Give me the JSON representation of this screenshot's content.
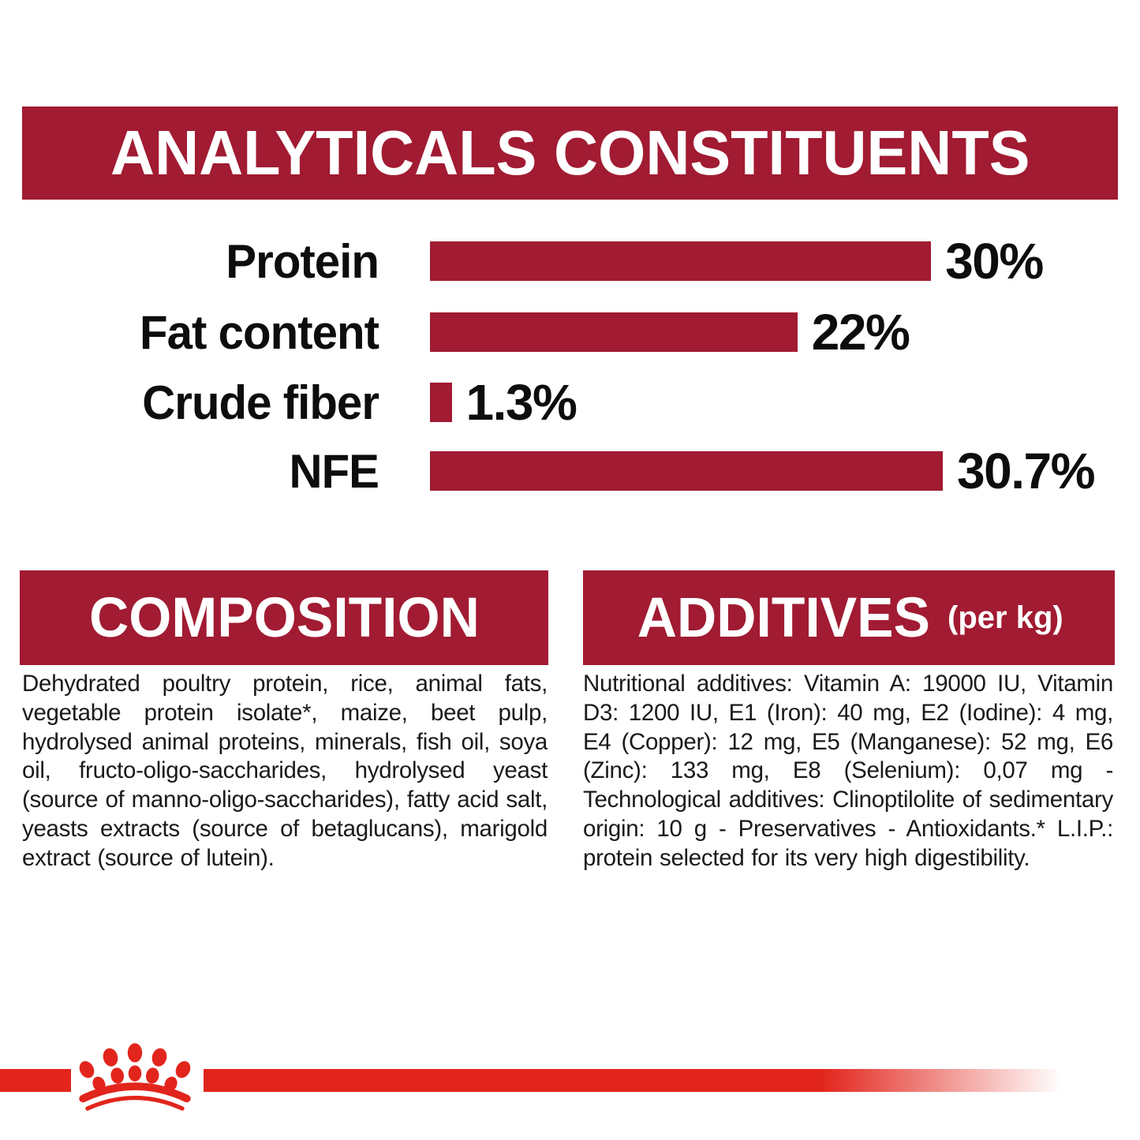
{
  "colors": {
    "crimson": "#A11B32",
    "bright_red": "#E2251C",
    "text_black": "#1A1A1A",
    "banner_text": "#FFFFFF"
  },
  "analyticals": {
    "title": "ANALYTICALS CONSTITUENTS"
  },
  "chart_data": {
    "type": "bar",
    "orientation": "horizontal",
    "title": "ANALYTICALS CONSTITUENTS",
    "categories": [
      "Protein",
      "Fat content",
      "Crude fiber",
      "NFE"
    ],
    "values": [
      30,
      22,
      1.3,
      30.7
    ],
    "display_values": [
      "30%",
      "22%",
      "1.3%",
      "30.7%"
    ],
    "xlabel": "",
    "ylabel": "",
    "xlim": [
      0,
      30.7
    ],
    "bar_color": "#A11B32",
    "grid": false,
    "legend": false,
    "value_label_position": "end-of-bar"
  },
  "composition": {
    "title": "COMPOSITION",
    "body": "Dehydrated poultry protein, rice, animal fats, vegetable protein isolate*, maize, beet pulp, hydrolysed animal proteins, minerals, fish oil, soya oil, fructo-oligo-saccharides, hydrolysed yeast (source of manno-oligo-saccharides), fatty acid salt, yeasts extracts (source of betaglucans), marigold extract (source of lutein)."
  },
  "additives": {
    "title": "ADDITIVES",
    "title_suffix": "(per kg)",
    "body": "Nutritional additives: Vitamin A: 19000 IU, Vitamin D3: 1200 IU, E1 (Iron): 40 mg, E2 (Iodine): 4 mg, E4 (Copper): 12 mg, E5 (Manganese): 52 mg, E6 (Zinc): 133 mg, E8 (Selenium): 0,07 mg - Technological additives: Clinoptilolite of sedimentary origin: 10 g - Preservatives - Antioxidants.* L.I.P.: protein selected for its very high digestibility."
  },
  "footer": {
    "logo": "royal-canin-crown"
  }
}
